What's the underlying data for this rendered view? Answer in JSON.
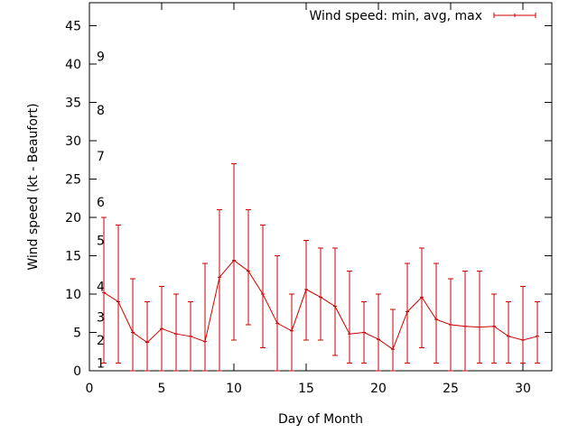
{
  "chart_data": {
    "type": "line",
    "title": "",
    "xlabel": "Day of Month",
    "ylabel": "Wind speed (kt - Beaufort)",
    "xlim": [
      0,
      32
    ],
    "ylim": [
      0,
      48
    ],
    "x_ticks": [
      0,
      5,
      10,
      15,
      20,
      25,
      30
    ],
    "y_ticks": [
      0,
      5,
      10,
      15,
      20,
      25,
      30,
      35,
      40,
      45
    ],
    "grid": false,
    "legend_position": "top-right",
    "beaufort_markers": [
      {
        "label": "1",
        "value": 1
      },
      {
        "label": "2",
        "value": 4
      },
      {
        "label": "3",
        "value": 7
      },
      {
        "label": "4",
        "value": 11
      },
      {
        "label": "5",
        "value": 17
      },
      {
        "label": "6",
        "value": 22
      },
      {
        "label": "7",
        "value": 28
      },
      {
        "label": "8",
        "value": 34
      },
      {
        "label": "9",
        "value": 41
      }
    ],
    "series": [
      {
        "name": "Wind speed: min, avg, max",
        "color": "#cc0000",
        "x": [
          1,
          2,
          3,
          4,
          5,
          6,
          7,
          8,
          9,
          10,
          11,
          12,
          13,
          14,
          15,
          16,
          17,
          18,
          19,
          20,
          21,
          22,
          23,
          24,
          25,
          26,
          27,
          28,
          29,
          30,
          31
        ],
        "avg": [
          10.2,
          9,
          5,
          3.7,
          5.5,
          4.8,
          4.5,
          3.8,
          12.2,
          14.4,
          13,
          10,
          6.2,
          5.2,
          10.6,
          9.6,
          8.4,
          4.8,
          5,
          4.1,
          2.8,
          7.7,
          9.6,
          6.7,
          6,
          5.8,
          5.7,
          5.8,
          4.5,
          4,
          4.5
        ],
        "min": [
          1,
          1,
          0,
          0,
          0,
          0,
          0,
          0,
          0,
          4,
          6,
          3,
          0,
          0,
          4,
          4,
          2,
          1,
          1,
          0,
          0,
          1,
          3,
          1,
          0,
          0,
          1,
          1,
          1,
          1,
          1
        ],
        "max": [
          20,
          19,
          12,
          9,
          11,
          10,
          9,
          14,
          21,
          27,
          21,
          19,
          15,
          10,
          17,
          16,
          16,
          13,
          9,
          10,
          8,
          14,
          16,
          14,
          12,
          13,
          13,
          10,
          9,
          11,
          9
        ]
      }
    ]
  }
}
